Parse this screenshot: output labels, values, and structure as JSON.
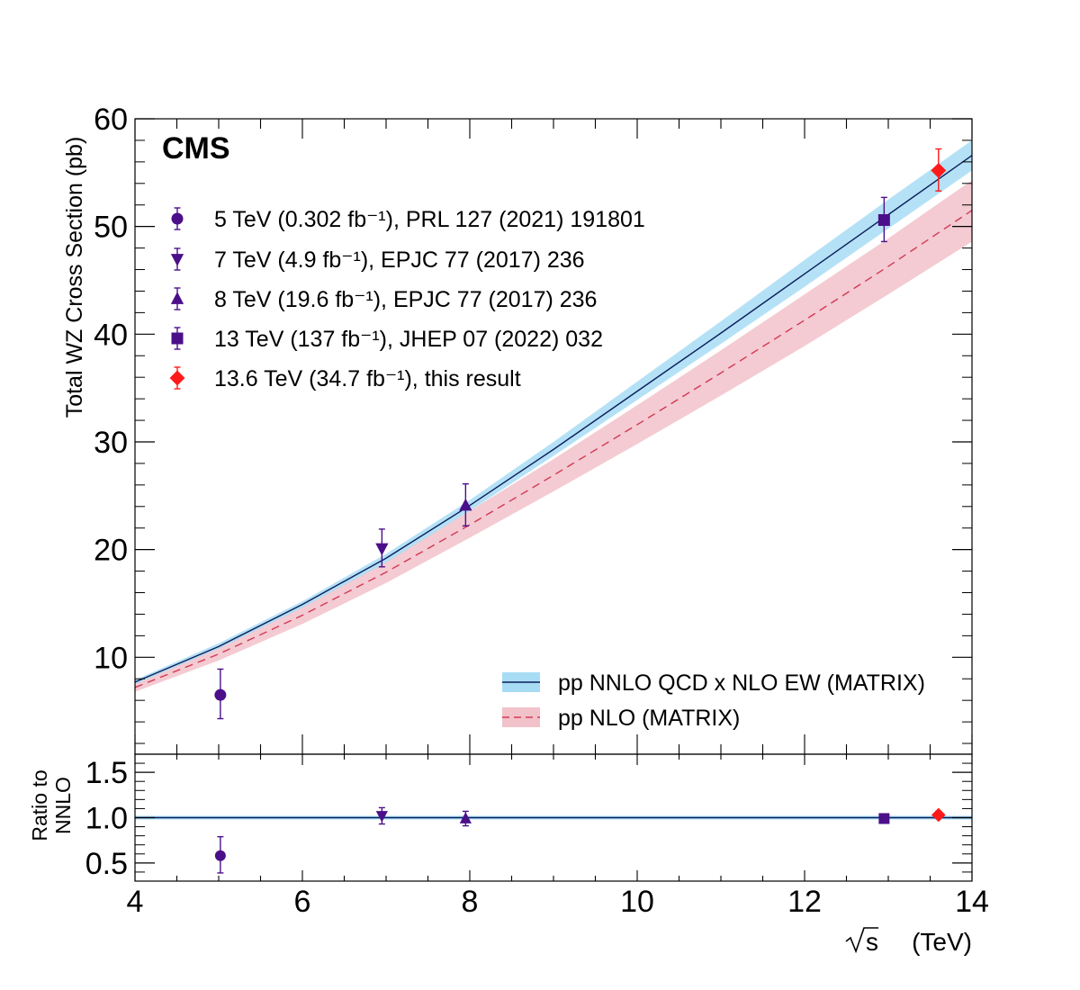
{
  "chart_data": {
    "type": "scatter",
    "experiment_label": "CMS",
    "xlabel_root": "s",
    "xlabel_unit": "(TeV)",
    "main": {
      "ylabel": "Total WZ Cross Section (pb)",
      "xlim": [
        4,
        14
      ],
      "ylim": [
        1,
        60
      ],
      "yticks": [
        10,
        20,
        30,
        40,
        50,
        60
      ],
      "points": [
        {
          "name": "5 TeV (0.302 fb⁻¹), PRL 127 (2021) 191801",
          "x": 5.02,
          "y": 6.5,
          "err_up": 2.4,
          "err_down": 2.2,
          "marker": "circle",
          "color": "#4b0f8a"
        },
        {
          "name": "7 TeV (4.9 fb⁻¹), EPJC  77 (2017) 236",
          "x": 6.95,
          "y": 20.1,
          "err_up": 1.8,
          "err_down": 1.7,
          "marker": "triangle-down",
          "color": "#4b0f8a"
        },
        {
          "name": "8 TeV (19.6 fb⁻¹), EPJC  77 (2017) 236",
          "x": 7.95,
          "y": 24.1,
          "err_up": 2.0,
          "err_down": 1.9,
          "marker": "triangle-up",
          "color": "#4b0f8a"
        },
        {
          "name": "13 TeV (137 fb⁻¹), JHEP 07 (2022) 032",
          "x": 12.95,
          "y": 50.6,
          "err_up": 2.1,
          "err_down": 2.0,
          "marker": "square",
          "color": "#4b0f8a"
        },
        {
          "name": "13.6 TeV (34.7 fb⁻¹), this result",
          "x": 13.6,
          "y": 55.2,
          "err_up": 2.0,
          "err_down": 1.9,
          "marker": "diamond",
          "color": "#ff1a1a"
        }
      ],
      "bands": [
        {
          "name": "pp NNLO QCD x NLO EW (MATRIX)",
          "line": "solid",
          "line_color": "#0a1f5c",
          "fill_color": "#a8dcf5",
          "x": [
            4,
            5,
            6,
            7,
            8,
            9,
            10,
            11,
            12,
            13,
            14
          ],
          "y": [
            7.7,
            11.0,
            14.9,
            19.2,
            24.1,
            29.3,
            34.7,
            40.1,
            45.6,
            51.1,
            56.6
          ],
          "y_low": [
            7.5,
            10.8,
            14.6,
            18.8,
            23.6,
            28.7,
            33.9,
            39.1,
            44.4,
            49.8,
            55.2
          ],
          "y_high": [
            7.9,
            11.3,
            15.2,
            19.6,
            24.6,
            30.0,
            35.6,
            41.2,
            46.9,
            52.5,
            58.0
          ]
        },
        {
          "name": "pp NLO (MATRIX)",
          "line": "dashed",
          "line_color": "#d23a55",
          "fill_color": "#f2c2ca",
          "x": [
            4,
            5,
            6,
            7,
            8,
            9,
            10,
            11,
            12,
            13,
            14
          ],
          "y": [
            7.2,
            10.3,
            13.9,
            17.9,
            22.3,
            26.9,
            31.6,
            36.4,
            41.3,
            46.3,
            51.5
          ],
          "y_low": [
            6.8,
            9.7,
            13.1,
            16.9,
            21.1,
            25.4,
            29.8,
            34.3,
            38.9,
            43.7,
            48.6
          ],
          "y_high": [
            7.6,
            10.9,
            14.7,
            18.9,
            23.6,
            28.4,
            33.4,
            38.5,
            43.7,
            48.9,
            54.3
          ]
        }
      ]
    },
    "ratio": {
      "ylabel_line1": "Ratio to",
      "ylabel_line2": "NNLO",
      "ylim": [
        0.3,
        1.7
      ],
      "yticks": [
        "0.5",
        "1.0",
        "1.5"
      ],
      "points": [
        {
          "x": 5.02,
          "y": 0.58,
          "err_up": 0.21,
          "err_down": 0.19,
          "marker": "circle",
          "color": "#4b0f8a"
        },
        {
          "x": 6.95,
          "y": 1.02,
          "err_up": 0.09,
          "err_down": 0.09,
          "marker": "triangle-down",
          "color": "#4b0f8a"
        },
        {
          "x": 7.95,
          "y": 0.99,
          "err_up": 0.08,
          "err_down": 0.08,
          "marker": "triangle-up",
          "color": "#4b0f8a"
        },
        {
          "x": 12.95,
          "y": 0.99,
          "err_up": 0.04,
          "err_down": 0.04,
          "marker": "square",
          "color": "#4b0f8a"
        },
        {
          "x": 13.6,
          "y": 1.03,
          "err_up": 0.04,
          "err_down": 0.04,
          "marker": "diamond",
          "color": "#ff1a1a"
        }
      ],
      "band_low": 0.98,
      "band_high": 1.02,
      "line_value": 1.0
    },
    "xticks": [
      "4",
      "6",
      "8",
      "10",
      "12",
      "14"
    ]
  }
}
